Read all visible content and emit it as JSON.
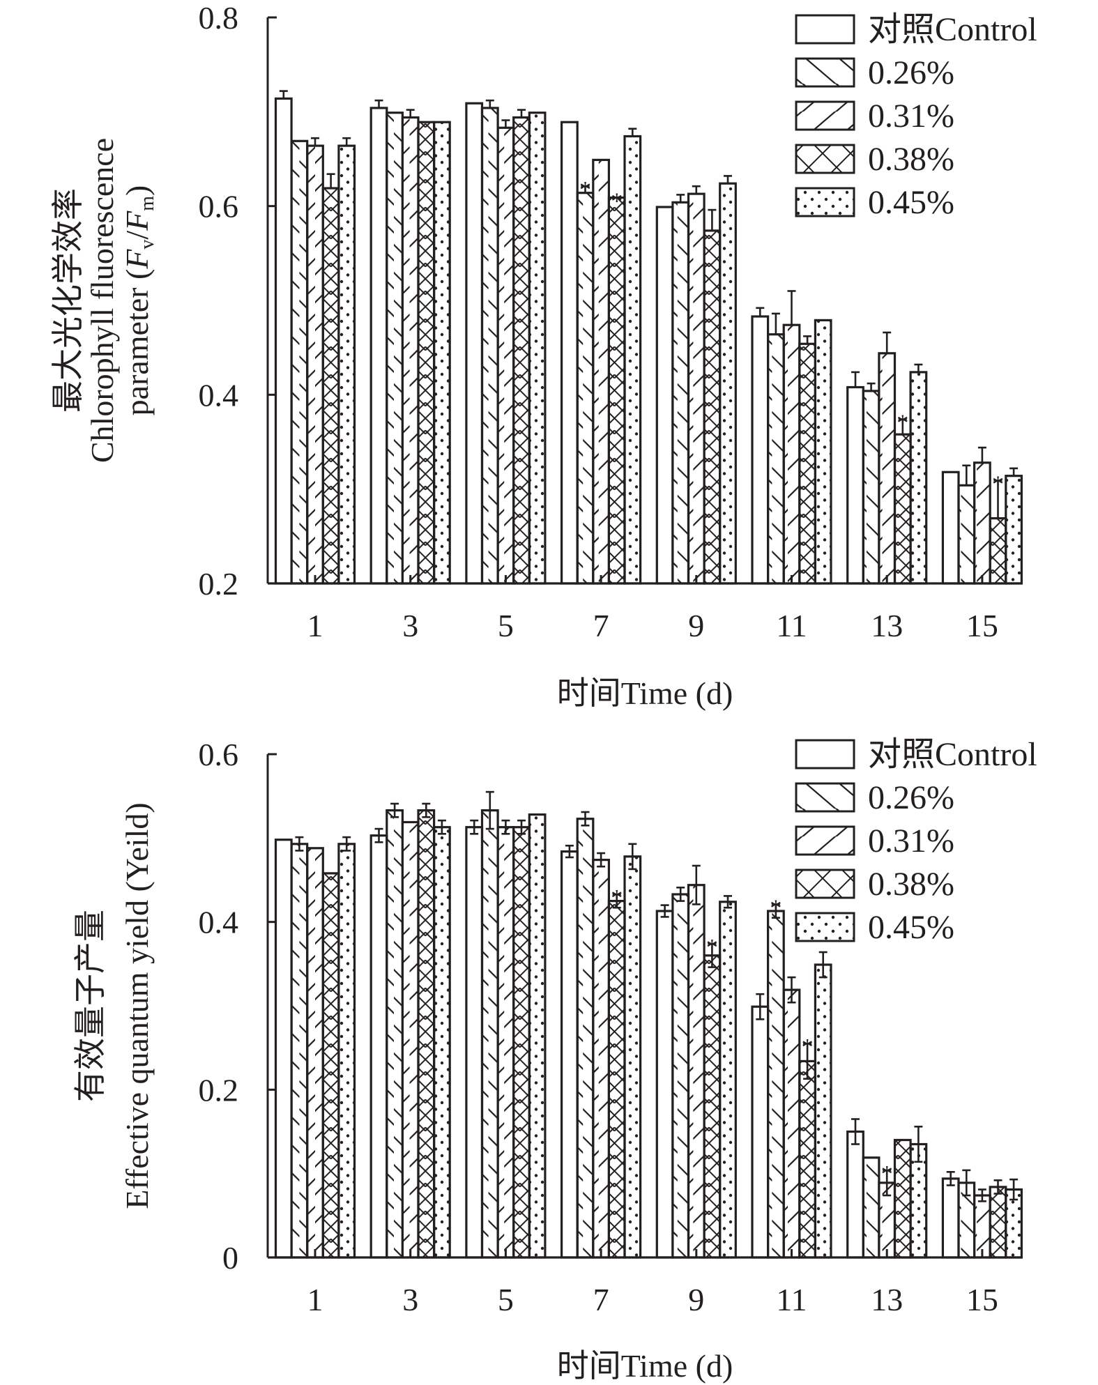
{
  "colors": {
    "ink": "#231f20",
    "background": "#ffffff"
  },
  "chart_data": [
    {
      "type": "bar",
      "id": "fv-fm",
      "title": "",
      "xlabel": "时间Time (d)",
      "ylabel_lines": [
        "最大光化学效率",
        "Chlorophyll fluorescence",
        "parameter (Fv/Fm)"
      ],
      "ylabel_cn": "最大光化学效率",
      "ylabel_en1": "Chlorophyll fluorescence",
      "ylabel_en2_prefix": "parameter (",
      "ylabel_en2_F1": "F",
      "ylabel_en2_sub1": "v",
      "ylabel_en2_slash": "/",
      "ylabel_en2_F2": "F",
      "ylabel_en2_sub2": "m",
      "ylabel_en2_suffix": ")",
      "ylim": [
        0.2,
        0.8
      ],
      "yticks": [
        0.2,
        0.4,
        0.6,
        0.8
      ],
      "ytick_labels": [
        "0.2",
        "0.4",
        "0.6",
        "0.8"
      ],
      "categories": [
        "1",
        "3",
        "5",
        "7",
        "9",
        "11",
        "13",
        "15"
      ],
      "error_style": "upper",
      "grid": false,
      "legend_position": "top-right",
      "series": [
        {
          "name": "对照Control",
          "pattern": "none",
          "values": [
            0.714,
            0.704,
            0.709,
            0.689,
            0.599,
            0.483,
            0.408,
            0.318
          ],
          "errors": [
            0.008,
            0.008,
            0.0,
            0.0,
            0.0,
            0.009,
            0.016,
            0.0
          ],
          "significant": [
            false,
            false,
            false,
            false,
            false,
            false,
            false,
            false
          ]
        },
        {
          "name": "0.26%",
          "pattern": "back-diagonal",
          "values": [
            0.669,
            0.699,
            0.704,
            0.614,
            0.604,
            0.464,
            0.404,
            0.304
          ],
          "errors": [
            0.0,
            0.0,
            0.008,
            0.007,
            0.008,
            0.022,
            0.008,
            0.021
          ],
          "significant": [
            false,
            false,
            false,
            true,
            false,
            false,
            false,
            false
          ]
        },
        {
          "name": "0.31%",
          "pattern": "forward-diagonal",
          "values": [
            0.664,
            0.694,
            0.683,
            0.649,
            0.613,
            0.474,
            0.444,
            0.328
          ],
          "errors": [
            0.008,
            0.008,
            0.008,
            0.0,
            0.008,
            0.036,
            0.022,
            0.016
          ],
          "significant": [
            false,
            false,
            false,
            false,
            false,
            false,
            false,
            false
          ]
        },
        {
          "name": "0.38%",
          "pattern": "cross-hatch",
          "values": [
            0.619,
            0.689,
            0.694,
            0.609,
            0.574,
            0.454,
            0.358,
            0.269
          ],
          "errors": [
            0.015,
            0.0,
            0.008,
            0.0,
            0.022,
            0.008,
            0.016,
            0.04
          ],
          "significant": [
            false,
            false,
            false,
            true,
            false,
            false,
            true,
            true
          ]
        },
        {
          "name": "0.45%",
          "pattern": "dots",
          "values": [
            0.664,
            0.689,
            0.699,
            0.674,
            0.624,
            0.479,
            0.424,
            0.314
          ],
          "errors": [
            0.008,
            0.0,
            0.0,
            0.008,
            0.008,
            0.0,
            0.008,
            0.008
          ],
          "significant": [
            false,
            false,
            false,
            false,
            false,
            false,
            false,
            false
          ]
        }
      ]
    },
    {
      "type": "bar",
      "id": "yield",
      "title": "",
      "xlabel": "时间Time (d)",
      "ylabel_lines": [
        "有效量子产量",
        "Effective quantum yield (Yeild)"
      ],
      "ylabel_cn": "有效量子产量",
      "ylabel_en1": "Effective quantum yield (Yeild)",
      "ylim": [
        0,
        0.6
      ],
      "yticks": [
        0,
        0.2,
        0.4,
        0.6
      ],
      "ytick_labels": [
        "0",
        "0.2",
        "0.4",
        "0.6"
      ],
      "categories": [
        "1",
        "3",
        "5",
        "7",
        "9",
        "11",
        "13",
        "15"
      ],
      "error_style": "symmetric",
      "grid": false,
      "legend_position": "top-right",
      "series": [
        {
          "name": "对照Control",
          "pattern": "none",
          "values": [
            0.498,
            0.503,
            0.513,
            0.484,
            0.413,
            0.299,
            0.15,
            0.094
          ],
          "errors": [
            0.0,
            0.008,
            0.008,
            0.007,
            0.007,
            0.015,
            0.015,
            0.008
          ],
          "significant": [
            false,
            false,
            false,
            false,
            false,
            false,
            false,
            false
          ]
        },
        {
          "name": "0.26%",
          "pattern": "back-diagonal",
          "values": [
            0.493,
            0.533,
            0.533,
            0.523,
            0.433,
            0.413,
            0.119,
            0.089
          ],
          "errors": [
            0.008,
            0.008,
            0.022,
            0.008,
            0.008,
            0.008,
            0.0,
            0.015
          ],
          "significant": [
            false,
            false,
            false,
            false,
            false,
            true,
            false,
            false
          ]
        },
        {
          "name": "0.31%",
          "pattern": "forward-diagonal",
          "values": [
            0.488,
            0.519,
            0.513,
            0.474,
            0.444,
            0.319,
            0.089,
            0.074
          ],
          "errors": [
            0.0,
            0.0,
            0.008,
            0.008,
            0.023,
            0.015,
            0.015,
            0.007
          ],
          "significant": [
            false,
            false,
            false,
            false,
            false,
            false,
            true,
            false
          ]
        },
        {
          "name": "0.38%",
          "pattern": "cross-hatch",
          "values": [
            0.458,
            0.533,
            0.513,
            0.425,
            0.36,
            0.234,
            0.14,
            0.084
          ],
          "errors": [
            0.0,
            0.008,
            0.008,
            0.008,
            0.014,
            0.021,
            0.0,
            0.008
          ],
          "significant": [
            false,
            false,
            false,
            true,
            true,
            true,
            false,
            false
          ]
        },
        {
          "name": "0.45%",
          "pattern": "dots",
          "values": [
            0.493,
            0.513,
            0.528,
            0.478,
            0.424,
            0.349,
            0.135,
            0.081
          ],
          "errors": [
            0.008,
            0.008,
            0.0,
            0.015,
            0.007,
            0.015,
            0.021,
            0.012
          ],
          "significant": [
            false,
            false,
            false,
            false,
            false,
            false,
            false,
            false
          ]
        }
      ]
    }
  ],
  "significance_marker": "*"
}
